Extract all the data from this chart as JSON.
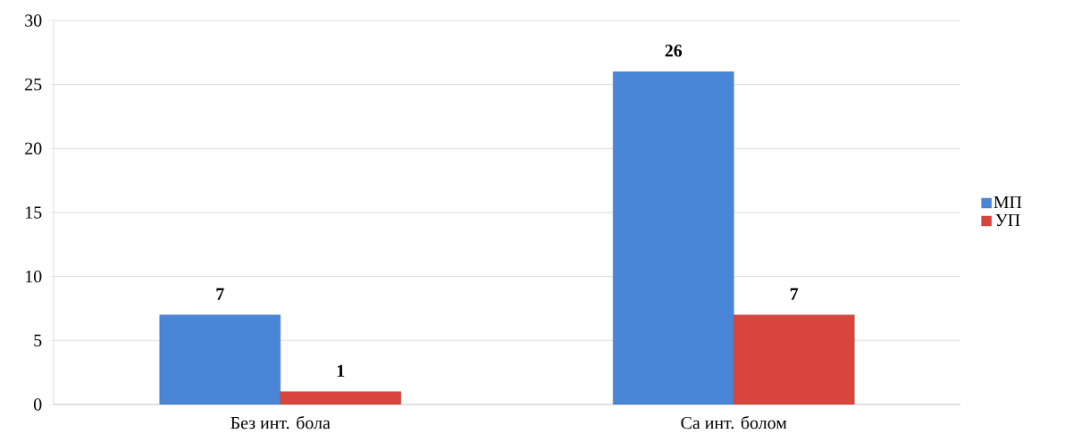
{
  "chart_data": {
    "type": "bar",
    "categories": [
      "Без инт. бола",
      "Са инт. болом"
    ],
    "series": [
      {
        "name": "МП",
        "color": "#4a86d8",
        "values": [
          7,
          26
        ]
      },
      {
        "name": "УП",
        "color": "#d9443c",
        "values": [
          1,
          7
        ]
      }
    ],
    "ylim": [
      0,
      30
    ],
    "yticks": [
      0,
      5,
      10,
      15,
      20,
      25,
      30
    ],
    "grid": "y",
    "legend": "right",
    "data_labels": true
  }
}
